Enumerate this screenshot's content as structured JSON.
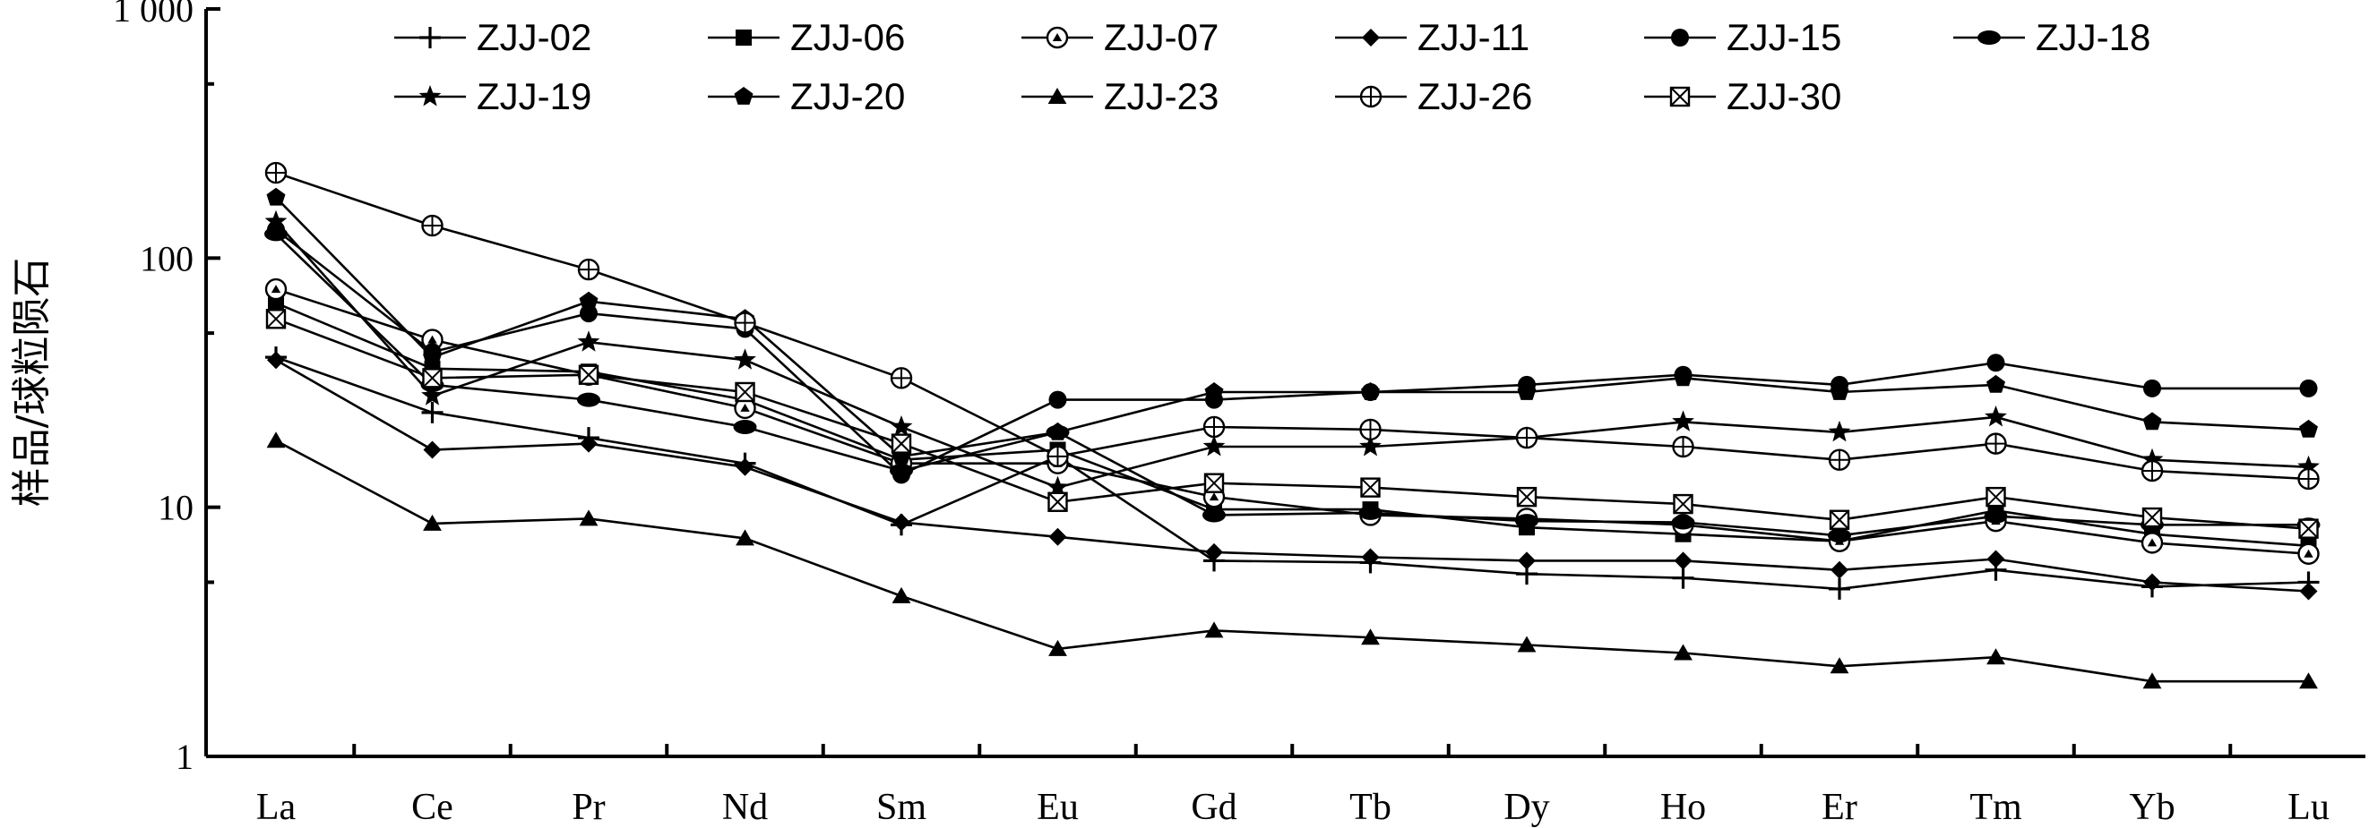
{
  "chart_data": {
    "type": "line",
    "title": "",
    "xlabel": "",
    "ylabel": "样品/球粒陨石",
    "yscale": "log",
    "ylim": [
      1,
      1000
    ],
    "yticks": [
      {
        "value": 1,
        "label": "1"
      },
      {
        "value": 10,
        "label": "10"
      },
      {
        "value": 100,
        "label": "100"
      },
      {
        "value": 1000,
        "label": "1 000"
      }
    ],
    "grid": false,
    "legend_position": "top",
    "categories": [
      "La",
      "Ce",
      "Pr",
      "Nd",
      "Sm",
      "Eu",
      "Gd",
      "Tb",
      "Dy",
      "Ho",
      "Er",
      "Tm",
      "Yb",
      "Lu"
    ],
    "series": [
      {
        "name": "ZJJ-02",
        "marker": "plus",
        "values": [
          40,
          24,
          19,
          15,
          8.5,
          16,
          6.1,
          6,
          5.4,
          5.2,
          4.7,
          5.6,
          4.8,
          5.0
        ]
      },
      {
        "name": "ZJJ-06",
        "marker": "square",
        "values": [
          66,
          36,
          35,
          27,
          15.5,
          17,
          9.8,
          9.8,
          8.3,
          7.8,
          7.3,
          9.7,
          7.8,
          7.0
        ]
      },
      {
        "name": "ZJJ-07",
        "marker": "circle-triangle",
        "values": [
          75,
          47,
          34,
          25,
          15,
          15,
          11,
          9.3,
          9,
          8.5,
          7.3,
          8.8,
          7.2,
          6.5
        ]
      },
      {
        "name": "ZJJ-11",
        "marker": "diamond",
        "values": [
          39,
          17,
          18,
          14.5,
          8.7,
          7.6,
          6.6,
          6.3,
          6.1,
          6.1,
          5.6,
          6.2,
          5.0,
          4.6
        ]
      },
      {
        "name": "ZJJ-15",
        "marker": "circle-filled",
        "values": [
          130,
          42,
          60,
          52,
          13.5,
          27,
          27,
          29,
          31,
          34,
          31,
          38,
          30,
          30
        ]
      },
      {
        "name": "ZJJ-18",
        "marker": "ellipse",
        "values": [
          125,
          31,
          27,
          21,
          14,
          20,
          9.3,
          9.5,
          8.8,
          8.7,
          7.7,
          9.2,
          8.5,
          8.5
        ]
      },
      {
        "name": "ZJJ-19",
        "marker": "star",
        "values": [
          140,
          28,
          46,
          39,
          21,
          12,
          17.5,
          17.5,
          19,
          22,
          20,
          23,
          15.5,
          14.5
        ]
      },
      {
        "name": "ZJJ-20",
        "marker": "pentagon",
        "values": [
          175,
          40,
          67,
          57,
          16,
          20,
          29,
          29,
          29,
          33,
          29,
          31,
          22,
          20.5
        ]
      },
      {
        "name": "ZJJ-23",
        "marker": "triangle",
        "values": [
          18.5,
          8.6,
          9,
          7.5,
          4.4,
          2.7,
          3.2,
          3.0,
          2.8,
          2.6,
          2.3,
          2.5,
          2.0,
          2.0
        ]
      },
      {
        "name": "ZJJ-26",
        "marker": "circle-plus",
        "values": [
          220,
          135,
          90,
          55,
          33,
          16,
          21,
          20.5,
          19,
          17.5,
          15.5,
          18,
          14,
          13
        ]
      },
      {
        "name": "ZJJ-30",
        "marker": "square-x",
        "values": [
          57,
          33,
          34,
          29,
          18,
          10.5,
          12.5,
          12,
          11,
          10.3,
          8.9,
          11,
          9.1,
          8.2
        ]
      }
    ]
  }
}
